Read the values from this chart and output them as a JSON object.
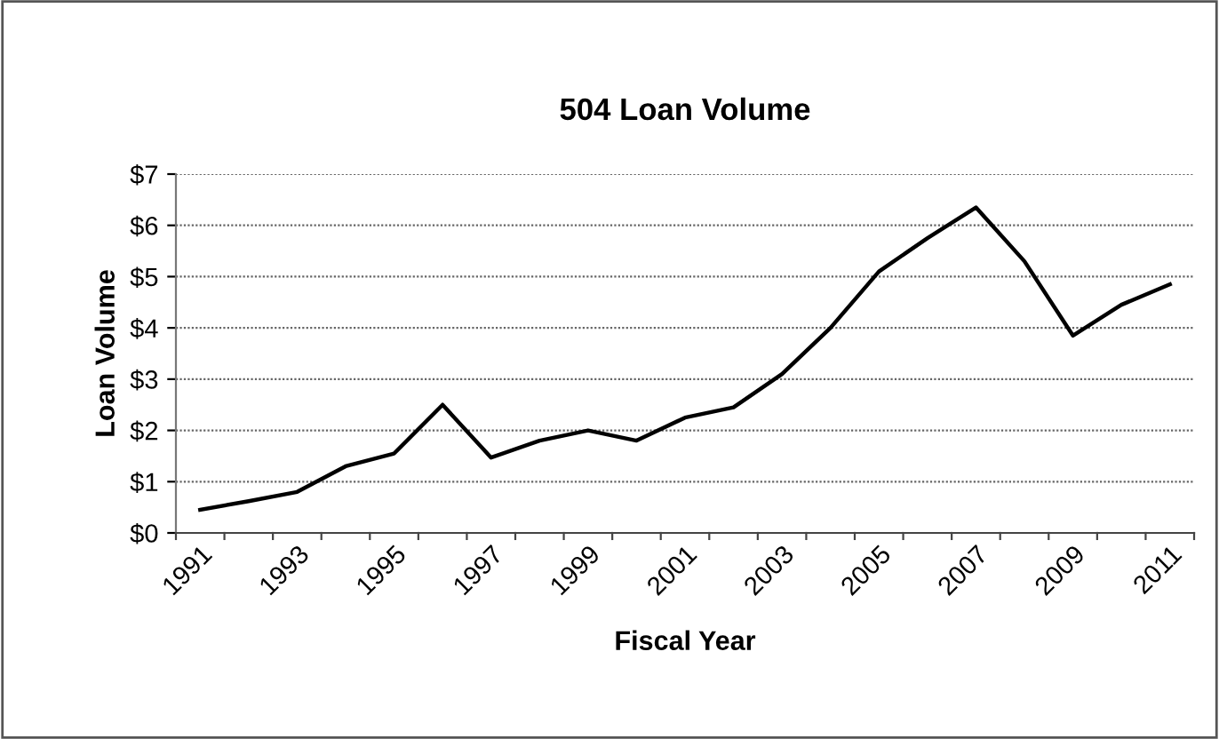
{
  "chart_data": {
    "type": "line",
    "title": "504 Loan Volume",
    "xlabel": "Fiscal Year",
    "ylabel": "Loan Volume",
    "categories": [
      "1991",
      null,
      "1993",
      null,
      "1995",
      null,
      "1997",
      null,
      "1999",
      null,
      "2001",
      null,
      "2003",
      null,
      "2005",
      null,
      "2007",
      null,
      "2009",
      null,
      "2011"
    ],
    "series": [
      {
        "color": "#000000",
        "values": [
          0.45,
          0.62,
          0.8,
          1.3,
          1.55,
          2.5,
          1.47,
          1.8,
          2.0,
          1.8,
          2.25,
          2.45,
          3.1,
          4.0,
          5.1,
          5.75,
          6.35,
          5.3,
          3.85,
          4.45,
          4.85
        ]
      }
    ],
    "ylim": [
      0,
      7
    ],
    "yticks": [
      {
        "value": 0,
        "label": "$0"
      },
      {
        "value": 1,
        "label": "$1"
      },
      {
        "value": 2,
        "label": "$2"
      },
      {
        "value": 3,
        "label": "$3"
      },
      {
        "value": 4,
        "label": "$4"
      },
      {
        "value": 5,
        "label": "$5"
      },
      {
        "value": 6,
        "label": "$6"
      },
      {
        "value": 7,
        "label": "$7"
      }
    ],
    "grid": "y",
    "marker": "none",
    "line_style": "solid"
  }
}
